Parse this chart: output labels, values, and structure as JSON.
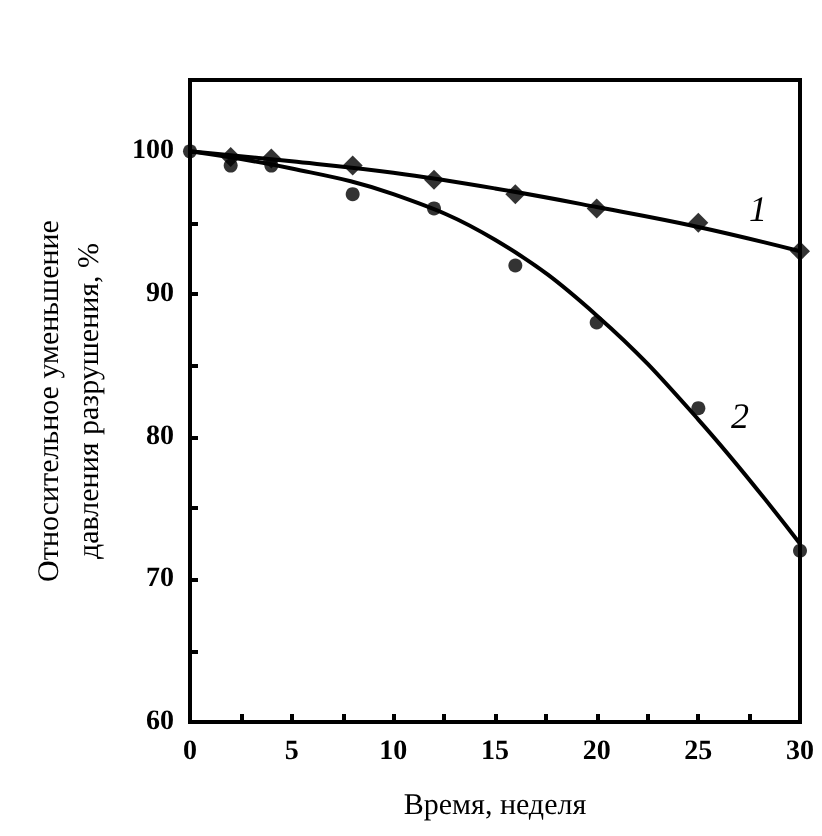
{
  "chart_data": {
    "type": "scatter",
    "xlabel": "Время, неделя",
    "ylabel": "Относительное уменьшение\nдавления разрушения, %",
    "xlim": [
      0,
      30
    ],
    "xticks": [
      0,
      {
        "value": 2.5,
        "label": null
      },
      5,
      {
        "value": 7.5,
        "label": null
      },
      10,
      {
        "value": 12.5,
        "label": null
      },
      15,
      {
        "value": 17.5,
        "label": null
      },
      20,
      {
        "value": 22.5,
        "label": null
      },
      25,
      {
        "value": 27.5,
        "label": null
      },
      30
    ],
    "ylim": [
      60,
      105
    ],
    "yticks": [
      60,
      {
        "value": 65,
        "label": null
      },
      70,
      {
        "value": 75,
        "label": null
      },
      80,
      {
        "value": 85,
        "label": null
      },
      90,
      {
        "value": 95,
        "label": null
      },
      100
    ],
    "grid": false,
    "series": [
      {
        "marker": "diamond",
        "color": "#000000",
        "x": [
          2,
          4,
          8,
          12,
          16,
          20,
          25,
          30
        ],
        "values": [
          99.6,
          99.5,
          99,
          98,
          97,
          96,
          95,
          93
        ]
      },
      {
        "marker": "circle",
        "color": "#000000",
        "x": [
          0,
          2,
          4,
          8,
          12,
          16,
          20,
          25,
          30
        ],
        "values": [
          100,
          99,
          99,
          97,
          96,
          92,
          88,
          82,
          72
        ]
      },
      {
        "type": "line",
        "marker": "none",
        "line_style": "solid",
        "color": "#000000",
        "x": [
          0,
          5,
          10,
          15,
          20,
          25,
          30
        ],
        "values": [
          100,
          99.3,
          98.5,
          97.4,
          96.1,
          94.7,
          93
        ]
      },
      {
        "type": "line",
        "marker": "none",
        "line_style": "solid",
        "color": "#000000",
        "x": [
          0,
          5,
          10,
          15,
          20,
          25,
          30
        ],
        "values": [
          100,
          98.8,
          97,
          93.8,
          88.5,
          81.2,
          72.5
        ]
      }
    ],
    "annotations": [
      "1",
      "2"
    ]
  }
}
